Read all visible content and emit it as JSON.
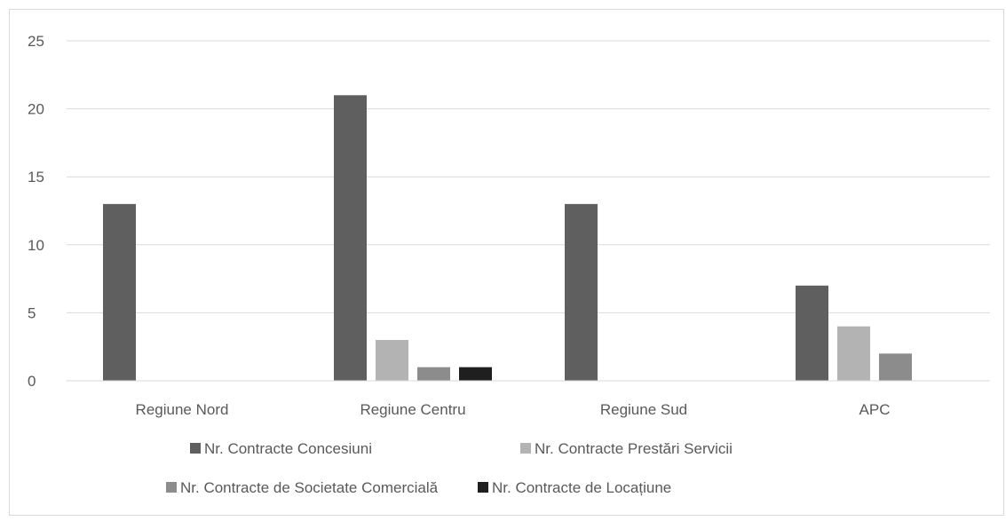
{
  "chart_data": {
    "type": "bar",
    "categories": [
      "Regiune Nord",
      "Regiune Centru",
      "Regiune Sud",
      "APC"
    ],
    "series": [
      {
        "name": "Nr. Contracte Concesiuni",
        "color": "#5f5f5f",
        "values": [
          13,
          21,
          13,
          7
        ]
      },
      {
        "name": "Nr. Contracte Prestări Servicii",
        "color": "#b3b3b3",
        "values": [
          0,
          3,
          0,
          4
        ]
      },
      {
        "name": "Nr. Contracte de Societate Comercială",
        "color": "#8c8c8c",
        "values": [
          0,
          1,
          0,
          2
        ]
      },
      {
        "name": "Nr. Contracte de Locațiune",
        "color": "#1f1f1f",
        "values": [
          0,
          1,
          0,
          0
        ]
      }
    ],
    "ylim": [
      0,
      25
    ],
    "yticks": [
      0,
      5,
      10,
      15,
      20,
      25
    ],
    "grid": true,
    "legend": "bottom"
  }
}
